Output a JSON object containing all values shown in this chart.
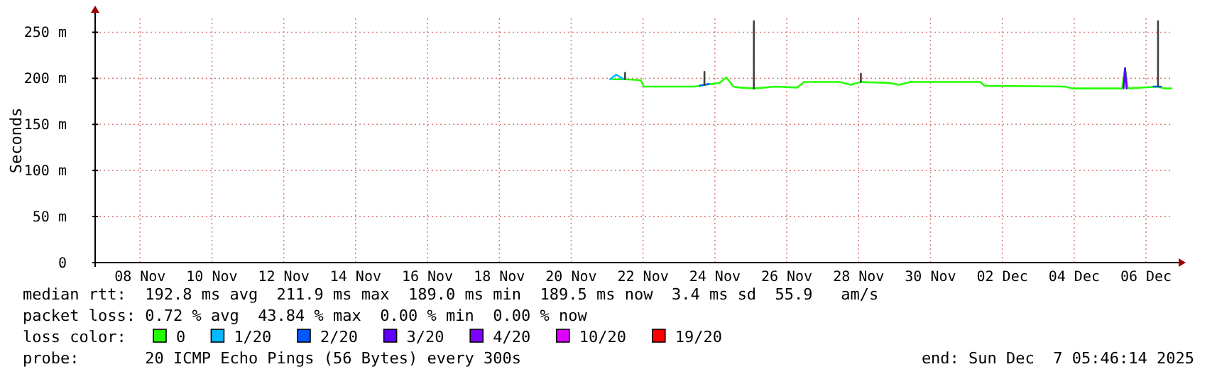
{
  "chart_data": {
    "type": "line",
    "ylabel": "Seconds",
    "legend_title": "loss color:",
    "legend": "bottom",
    "grid": true,
    "marker": "none",
    "line_style": "solid",
    "xlim": [
      "2025-11-07T06:00",
      "2025-12-07T06:00"
    ],
    "xticks": [
      {
        "value": "2025-11-08T12:00",
        "label": "08 Nov"
      },
      {
        "value": "2025-11-10T12:00",
        "label": "10 Nov"
      },
      {
        "value": "2025-11-12T12:00",
        "label": "12 Nov"
      },
      {
        "value": "2025-11-14T12:00",
        "label": "14 Nov"
      },
      {
        "value": "2025-11-16T12:00",
        "label": "16 Nov"
      },
      {
        "value": "2025-11-18T12:00",
        "label": "18 Nov"
      },
      {
        "value": "2025-11-20T12:00",
        "label": "20 Nov"
      },
      {
        "value": "2025-11-22T12:00",
        "label": "22 Nov"
      },
      {
        "value": "2025-11-24T12:00",
        "label": "24 Nov"
      },
      {
        "value": "2025-11-26T12:00",
        "label": "26 Nov"
      },
      {
        "value": "2025-11-28T12:00",
        "label": "28 Nov"
      },
      {
        "value": "2025-11-30T12:00",
        "label": "30 Nov"
      },
      {
        "value": "2025-12-02T12:00",
        "label": "02 Dec"
      },
      {
        "value": "2025-12-04T12:00",
        "label": "04 Dec"
      },
      {
        "value": "2025-12-06T12:00",
        "label": "06 Dec"
      }
    ],
    "ylim": [
      0,
      265
    ],
    "yticks": [
      0,
      {
        "value": 50,
        "label": "50 m"
      },
      {
        "value": 100,
        "label": "100 m"
      },
      {
        "value": 150,
        "label": "150 m"
      },
      {
        "value": 200,
        "label": "200 m"
      },
      {
        "value": 250,
        "label": "250 m"
      }
    ],
    "series": [
      {
        "name": "0",
        "color": "#26ff00",
        "x": [
          "2025-11-21T15:35",
          "2025-11-22T01:00",
          "2025-11-22T10:30",
          "2025-11-22T12:30",
          "2025-11-23T22:40",
          "2025-11-24T05:20",
          "2025-11-24T15:00",
          "2025-11-24T19:40",
          "2025-11-25T00:20",
          "2025-11-25T05:00",
          "2025-11-25T14:30",
          "2025-11-26T04:40",
          "2025-11-26T19:00",
          "2025-11-26T23:30",
          "2025-11-27T23:20",
          "2025-11-28T06:50",
          "2025-11-28T13:30",
          "2025-11-29T08:30",
          "2025-11-29T15:00",
          "2025-11-29T22:40",
          "2025-12-01T21:20",
          "2025-12-02T00:00",
          "2025-12-04T06:00",
          "2025-12-04T10:50",
          "2025-12-05T20:00",
          "2025-12-05T22:00",
          "2025-12-05T23:50",
          "2025-12-06T19:50",
          "2025-12-07T00:30",
          "2025-12-07T05:00"
        ],
        "values": [
          199,
          199,
          198,
          191,
          191,
          193,
          195,
          201,
          191,
          190,
          189,
          191,
          190,
          196,
          196,
          193,
          196,
          195,
          193,
          196,
          196,
          192,
          191,
          189,
          189,
          211,
          189,
          191,
          189,
          189
        ]
      },
      {
        "name": "1/20",
        "color": "#00b8ff",
        "x": [
          "2025-11-21T14:00",
          "2025-11-21T18:00",
          "2025-11-21T23:00"
        ],
        "values": [
          199,
          204,
          199
        ]
      },
      {
        "name": "2/20",
        "color": "#0059ff",
        "x": [
          "2025-11-24T02:00",
          "2025-11-24T08:00",
          null,
          "2025-12-06T17:00",
          "2025-12-06T22:00"
        ],
        "values": [
          192,
          194,
          null,
          191,
          191
        ]
      },
      {
        "name": "3/20",
        "color": "#5e00ff",
        "x": [
          "2025-12-05T21:00",
          "2025-12-05T22:00",
          "2025-12-05T23:00"
        ],
        "values": [
          189,
          211,
          189
        ]
      },
      {
        "name": "4/20",
        "color": "#7e00ff"
      },
      {
        "name": "10/20",
        "color": "#dd00ff"
      },
      {
        "name": "19/20",
        "color": "#ff0000"
      },
      {
        "color": "#404040",
        "x": [
          "2025-11-22T00:00",
          "2025-11-22T00:01",
          null,
          "2025-11-24T05:00",
          "2025-11-24T05:01",
          null,
          "2025-11-25T14:00",
          "2025-11-25T14:01",
          null,
          "2025-11-28T13:30",
          "2025-11-28T13:31",
          null,
          "2025-12-06T20:00",
          "2025-12-06T20:01"
        ],
        "values": [
          199,
          206,
          null,
          193,
          207,
          null,
          189,
          262,
          null,
          196,
          205,
          null,
          191,
          262
        ]
      }
    ],
    "annotations": [
      "median rtt:  192.8 ms avg  211.9 ms max  189.0 ms min  189.5 ms now  3.4 ms sd  55.9   am/s",
      "packet loss: 0.72 % avg  43.84 % max  0.00 % min  0.00 % now",
      "probe:       20 ICMP Echo Pings (56 Bytes) every 300s",
      "end: Sun Dec  7 05:46:14 2025"
    ]
  }
}
